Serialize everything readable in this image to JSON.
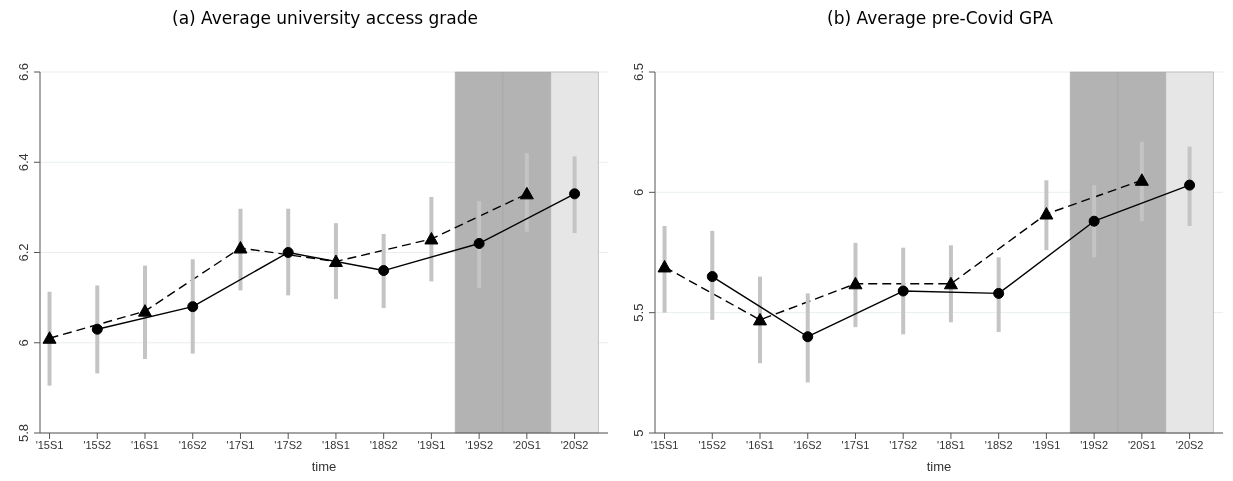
{
  "chart_data": [
    {
      "type": "line",
      "title": "(a) Average university access grade",
      "xlabel": "time",
      "categories": [
        "'15S1",
        "'15S2",
        "'16S1",
        "'16S2",
        "'17S1",
        "'17S2",
        "'18S1",
        "'18S2",
        "'19S1",
        "'19S2",
        "'20S1",
        "'20S2"
      ],
      "ylim": [
        5.8,
        6.6
      ],
      "yticks": [
        5.8,
        6,
        6.2,
        6.4,
        6.6
      ],
      "grid": "y",
      "bands": [
        {
          "axis": "x",
          "from": "'19S2",
          "to": "'19S2",
          "color": "#b3b3b3"
        },
        {
          "axis": "x",
          "from": "'20S1",
          "to": "'20S1",
          "color": "#b3b3b3"
        },
        {
          "axis": "x",
          "from": "'20S2",
          "to": "'20S2",
          "color": "#e6e6e6"
        }
      ],
      "series": [
        {
          "type": "line",
          "marker": "triangle",
          "line_style": "dashed",
          "color": "#000000",
          "values": [
            6.01,
            null,
            6.07,
            null,
            6.21,
            null,
            6.18,
            null,
            6.23,
            null,
            6.33,
            null
          ],
          "errors": [
            [
              5.905,
              6.113
            ],
            null,
            [
              5.964,
              6.171
            ],
            null,
            [
              6.116,
              6.297
            ],
            null,
            [
              6.097,
              6.265
            ],
            null,
            [
              6.136,
              6.323
            ],
            null,
            [
              6.246,
              6.42
            ],
            null
          ]
        },
        {
          "type": "line",
          "marker": "circle",
          "line_style": "solid",
          "color": "#000000",
          "values": [
            null,
            6.03,
            null,
            6.08,
            null,
            6.2,
            null,
            6.16,
            null,
            6.22,
            null,
            6.33
          ],
          "errors": [
            null,
            [
              5.932,
              6.127
            ],
            null,
            [
              5.976,
              6.185
            ],
            null,
            [
              6.105,
              6.297
            ],
            null,
            [
              6.077,
              6.241
            ],
            null,
            [
              6.121,
              6.314
            ],
            null,
            [
              6.243,
              6.413
            ]
          ]
        }
      ]
    },
    {
      "type": "line",
      "title": "(b) Average pre-Covid GPA",
      "xlabel": "time",
      "categories": [
        "'15S1",
        "'15S2",
        "'16S1",
        "'16S2",
        "'17S1",
        "'17S2",
        "'18S1",
        "'18S2",
        "'19S1",
        "'19S2",
        "'20S1",
        "'20S2"
      ],
      "ylim": [
        5,
        6.5
      ],
      "yticks": [
        5,
        5.5,
        6,
        6.5
      ],
      "grid": "y",
      "bands": [
        {
          "axis": "x",
          "from": "'19S2",
          "to": "'19S2",
          "color": "#b3b3b3"
        },
        {
          "axis": "x",
          "from": "'20S1",
          "to": "'20S1",
          "color": "#b3b3b3"
        },
        {
          "axis": "x",
          "from": "'20S2",
          "to": "'20S2",
          "color": "#e6e6e6"
        }
      ],
      "series": [
        {
          "type": "line",
          "marker": "triangle",
          "line_style": "dashed",
          "color": "#000000",
          "values": [
            5.69,
            null,
            5.47,
            null,
            5.62,
            null,
            5.62,
            null,
            5.91,
            null,
            6.05,
            null
          ],
          "errors": [
            [
              5.5,
              5.86
            ],
            null,
            [
              5.29,
              5.65
            ],
            null,
            [
              5.44,
              5.79
            ],
            null,
            [
              5.46,
              5.78
            ],
            null,
            [
              5.76,
              6.05
            ],
            null,
            [
              5.88,
              6.21
            ],
            null
          ]
        },
        {
          "type": "line",
          "marker": "circle",
          "line_style": "solid",
          "color": "#000000",
          "values": [
            null,
            5.65,
            null,
            5.4,
            null,
            5.59,
            null,
            5.58,
            null,
            5.88,
            null,
            6.03
          ],
          "errors": [
            null,
            [
              5.47,
              5.84
            ],
            null,
            [
              5.21,
              5.58
            ],
            null,
            [
              5.41,
              5.77
            ],
            null,
            [
              5.42,
              5.73
            ],
            null,
            [
              5.73,
              6.03
            ],
            null,
            [
              5.86,
              6.19
            ]
          ]
        }
      ]
    }
  ]
}
